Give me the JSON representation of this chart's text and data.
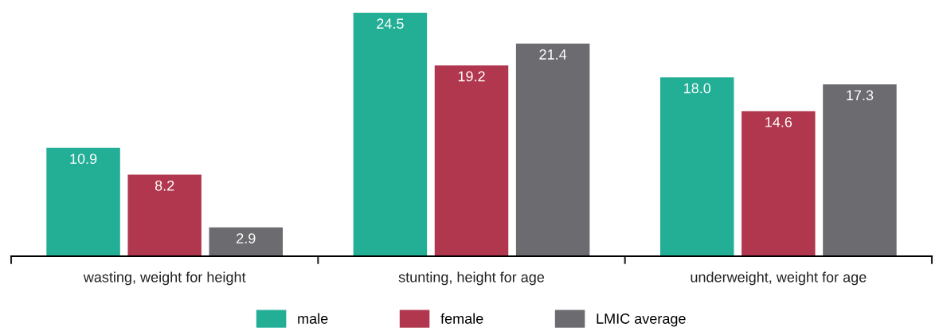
{
  "chart_data": {
    "type": "bar",
    "categories": [
      "wasting, weight for height",
      "stunting, height for age",
      "underweight, weight for age"
    ],
    "series": [
      {
        "name": "male",
        "color": "#23ae96",
        "values": [
          10.9,
          24.5,
          18.0
        ],
        "value_labels": [
          "10.9",
          "24.5",
          "18.0"
        ]
      },
      {
        "name": "female",
        "color": "#b0374d",
        "values": [
          8.2,
          19.2,
          14.6
        ],
        "value_labels": [
          "8.2",
          "19.2",
          "14.6"
        ]
      },
      {
        "name": "LMIC average",
        "color": "#6b6b70",
        "values": [
          2.9,
          21.4,
          17.3
        ],
        "value_labels": [
          "2.9",
          "21.4",
          "17.3"
        ]
      }
    ],
    "legend": "bottom",
    "grid": false,
    "tick_labels": "x"
  }
}
